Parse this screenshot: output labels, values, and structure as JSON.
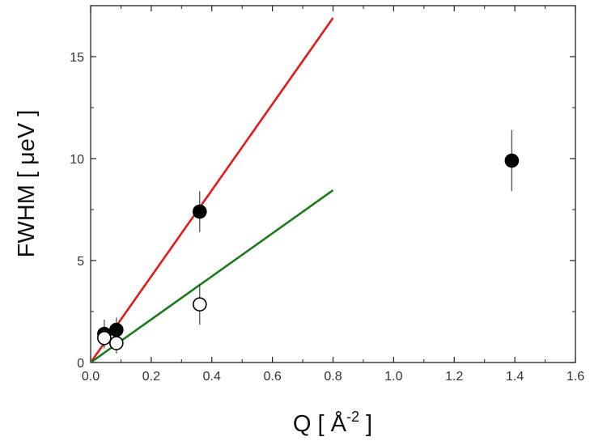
{
  "chart_data": {
    "type": "scatter",
    "title": "",
    "xlabel_base": "Q [ Å",
    "xlabel_sup": "-2",
    "xlabel_end": " ]",
    "ylabel": "FWHM [ μeV ]",
    "xlim": [
      0.0,
      1.6
    ],
    "ylim": [
      0,
      17.5
    ],
    "xticks": [
      0.0,
      0.2,
      0.4,
      0.6,
      0.8,
      1.0,
      1.2,
      1.4,
      1.6
    ],
    "xtick_labels": [
      "0.0",
      "0.2",
      "0.4",
      "0.6",
      "0.8",
      "1.0",
      "1.2",
      "1.4",
      "1.6"
    ],
    "yticks": [
      0,
      5,
      10,
      15
    ],
    "ytick_labels": [
      "0",
      "5",
      "10",
      "15"
    ],
    "grid": false,
    "series": [
      {
        "marker": "filled-circle",
        "color": "#000000",
        "points": [
          {
            "x": 0.045,
            "y": 1.4,
            "err": 0.7
          },
          {
            "x": 0.085,
            "y": 1.6,
            "err": 0.6
          },
          {
            "x": 0.36,
            "y": 7.4,
            "err": 1.0
          },
          {
            "x": 1.39,
            "y": 9.9,
            "err": 1.5
          }
        ]
      },
      {
        "marker": "open-circle",
        "color": "#000000",
        "points": [
          {
            "x": 0.045,
            "y": 1.2,
            "err": 0.4
          },
          {
            "x": 0.085,
            "y": 0.95,
            "err": 0.5
          },
          {
            "x": 0.36,
            "y": 2.85,
            "err": 1.0
          }
        ]
      }
    ],
    "fit_lines": [
      {
        "color": "#e41a1c",
        "x": [
          0.0,
          0.8
        ],
        "y": [
          0.0,
          16.9
        ]
      },
      {
        "color": "#1a7a1a",
        "x": [
          0.0,
          0.8
        ],
        "y": [
          0.0,
          8.45
        ]
      }
    ]
  }
}
